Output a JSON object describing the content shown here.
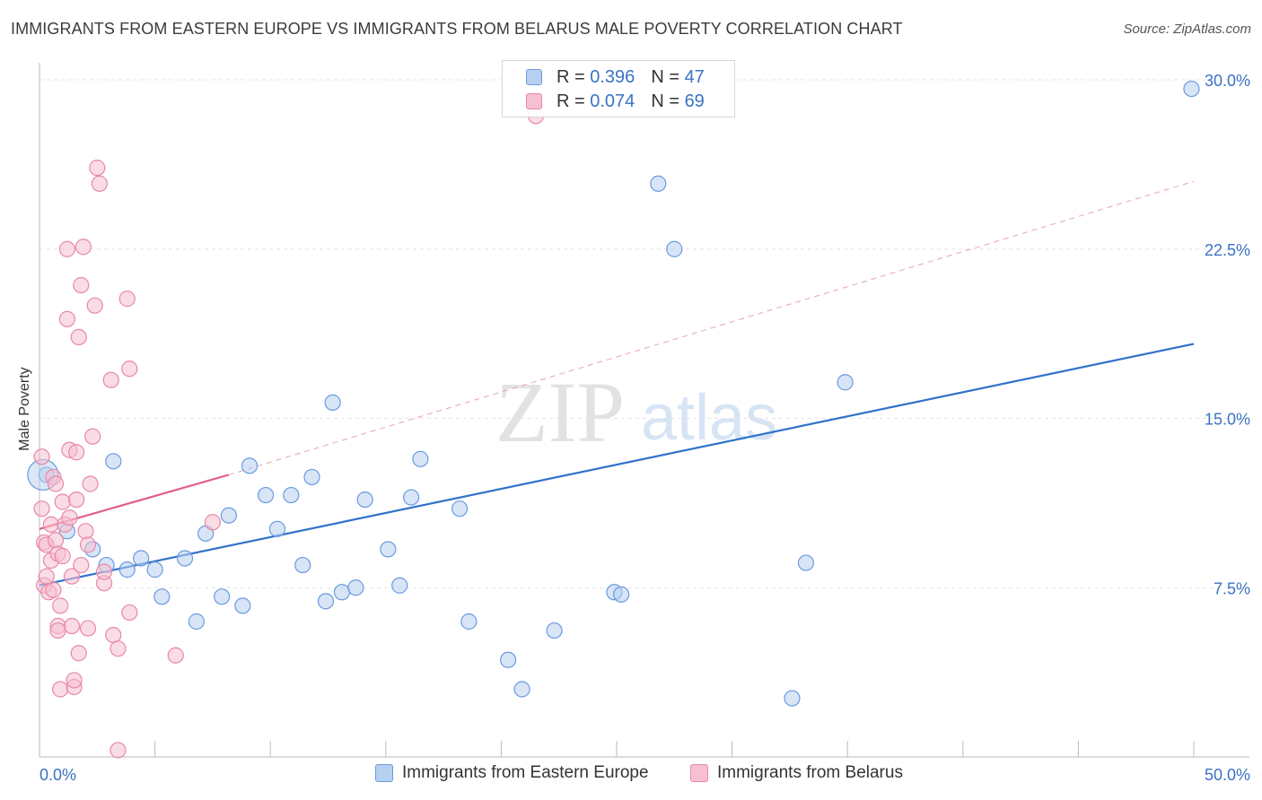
{
  "title": "IMMIGRANTS FROM EASTERN EUROPE VS IMMIGRANTS FROM BELARUS MALE POVERTY CORRELATION CHART",
  "source": "Source: ZipAtlas.com",
  "watermark": {
    "zip": "ZIP",
    "atlas": "atlas"
  },
  "legend": {
    "r_label": "R =",
    "n_label": "N =",
    "items": [
      {
        "r": "0.396",
        "n": "47",
        "swatch_fill": "#b8d0f0",
        "swatch_stroke": "#6a9ae0"
      },
      {
        "r": "0.074",
        "n": "69",
        "swatch_fill": "#f6c0d0",
        "swatch_stroke": "#e888a8"
      }
    ]
  },
  "chart_data": {
    "type": "scatter",
    "xlabel": "",
    "ylabel": "Male Poverty",
    "xlim": [
      0,
      50
    ],
    "ylim": [
      0,
      30.5
    ],
    "x_tick_labels": [
      {
        "value": 0,
        "label": "0.0%"
      },
      {
        "value": 50,
        "label": "50.0%"
      }
    ],
    "y_tick_labels": [
      {
        "value": 7.5,
        "label": "7.5%"
      },
      {
        "value": 15.0,
        "label": "15.0%"
      },
      {
        "value": 22.5,
        "label": "22.5%"
      },
      {
        "value": 30.0,
        "label": "30.0%"
      }
    ],
    "grid": true,
    "legend_position": "top-center",
    "series": [
      {
        "name": "Immigrants from Eastern Europe",
        "color": "#6a9ae0",
        "fill": "#b8d0f0",
        "points": [
          [
            0.3,
            12.5
          ],
          [
            1.2,
            10.0
          ],
          [
            2.3,
            9.2
          ],
          [
            2.9,
            8.5
          ],
          [
            3.2,
            13.1
          ],
          [
            3.8,
            8.3
          ],
          [
            4.4,
            8.8
          ],
          [
            5.0,
            8.3
          ],
          [
            5.3,
            7.1
          ],
          [
            6.3,
            8.8
          ],
          [
            6.8,
            6.0
          ],
          [
            7.2,
            9.9
          ],
          [
            7.9,
            7.1
          ],
          [
            8.2,
            10.7
          ],
          [
            8.8,
            6.7
          ],
          [
            9.1,
            12.9
          ],
          [
            9.8,
            11.6
          ],
          [
            10.3,
            10.1
          ],
          [
            10.9,
            11.6
          ],
          [
            11.4,
            8.5
          ],
          [
            11.8,
            12.4
          ],
          [
            12.4,
            6.9
          ],
          [
            12.7,
            15.7
          ],
          [
            13.1,
            7.3
          ],
          [
            13.7,
            7.5
          ],
          [
            14.1,
            11.4
          ],
          [
            15.1,
            9.2
          ],
          [
            15.6,
            7.6
          ],
          [
            16.1,
            11.5
          ],
          [
            16.5,
            13.2
          ],
          [
            18.2,
            11.0
          ],
          [
            18.6,
            6.0
          ],
          [
            20.3,
            4.3
          ],
          [
            20.9,
            3.0
          ],
          [
            22.3,
            5.6
          ],
          [
            24.9,
            7.3
          ],
          [
            25.2,
            7.2
          ],
          [
            26.8,
            25.4
          ],
          [
            27.5,
            22.5
          ],
          [
            32.6,
            2.6
          ],
          [
            33.2,
            8.6
          ],
          [
            34.9,
            16.6
          ],
          [
            49.9,
            29.6
          ]
        ]
      },
      {
        "name": "Immigrants from Belarus",
        "color": "#e888a8",
        "fill": "#f6c0d0",
        "points": [
          [
            0.1,
            13.3
          ],
          [
            0.1,
            11.0
          ],
          [
            0.2,
            9.5
          ],
          [
            0.2,
            7.6
          ],
          [
            0.3,
            9.4
          ],
          [
            0.3,
            8.0
          ],
          [
            0.4,
            7.3
          ],
          [
            0.5,
            10.3
          ],
          [
            0.5,
            8.7
          ],
          [
            0.6,
            12.4
          ],
          [
            0.6,
            7.4
          ],
          [
            0.7,
            12.1
          ],
          [
            0.7,
            9.6
          ],
          [
            0.8,
            9.0
          ],
          [
            0.8,
            5.8
          ],
          [
            0.8,
            5.6
          ],
          [
            0.9,
            6.7
          ],
          [
            0.9,
            3.0
          ],
          [
            1.0,
            11.3
          ],
          [
            1.0,
            8.9
          ],
          [
            1.1,
            10.3
          ],
          [
            1.2,
            22.5
          ],
          [
            1.2,
            19.4
          ],
          [
            1.3,
            13.6
          ],
          [
            1.3,
            10.6
          ],
          [
            1.4,
            8.0
          ],
          [
            1.4,
            5.8
          ],
          [
            1.5,
            3.1
          ],
          [
            1.5,
            3.4
          ],
          [
            1.6,
            11.4
          ],
          [
            1.6,
            13.5
          ],
          [
            1.7,
            18.6
          ],
          [
            1.7,
            4.6
          ],
          [
            1.8,
            20.9
          ],
          [
            1.8,
            8.5
          ],
          [
            1.9,
            22.6
          ],
          [
            2.0,
            10.0
          ],
          [
            2.1,
            9.4
          ],
          [
            2.1,
            5.7
          ],
          [
            2.2,
            12.1
          ],
          [
            2.3,
            14.2
          ],
          [
            2.4,
            20.0
          ],
          [
            2.5,
            26.1
          ],
          [
            2.6,
            25.4
          ],
          [
            2.8,
            7.7
          ],
          [
            2.8,
            8.2
          ],
          [
            3.1,
            16.7
          ],
          [
            3.2,
            5.4
          ],
          [
            3.4,
            4.8
          ],
          [
            3.4,
            0.3
          ],
          [
            3.8,
            20.3
          ],
          [
            3.9,
            17.2
          ],
          [
            3.9,
            6.4
          ],
          [
            5.9,
            4.5
          ],
          [
            7.5,
            10.4
          ],
          [
            21.5,
            28.4
          ]
        ]
      }
    ],
    "trend_lines": [
      {
        "series": "Immigrants from Eastern Europe",
        "x": [
          0,
          50
        ],
        "y": [
          7.6,
          18.3
        ],
        "style": "solid"
      },
      {
        "series": "Immigrants from Belarus",
        "x": [
          0,
          8.2
        ],
        "y": [
          10.1,
          12.5
        ],
        "style": "solid"
      },
      {
        "series": "Immigrants from Belarus",
        "x": [
          8.2,
          50
        ],
        "y": [
          12.5,
          25.5
        ],
        "style": "dashed"
      }
    ]
  }
}
